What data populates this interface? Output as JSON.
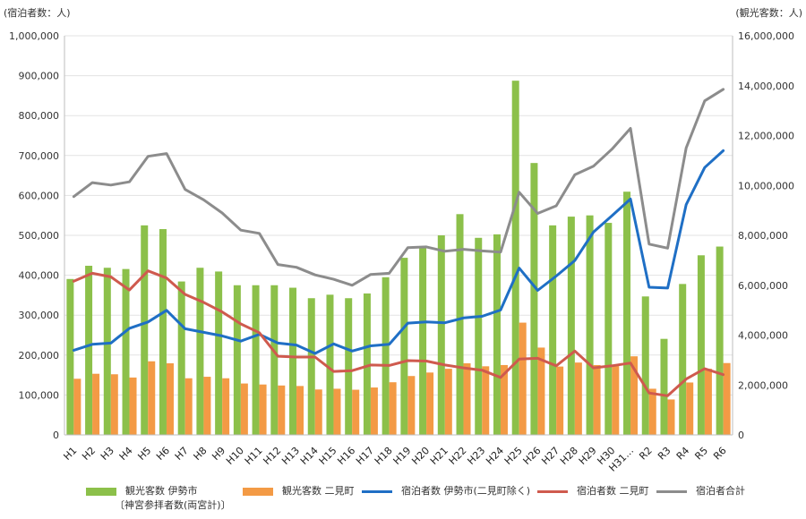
{
  "chart_data": {
    "type": "bar",
    "title": "",
    "left_unit_label": "(宿泊者数：人)",
    "right_unit_label": "(観光客数：人)",
    "categories": [
      "H1",
      "H2",
      "H3",
      "H4",
      "H5",
      "H6",
      "H7",
      "H8",
      "H9",
      "H10",
      "H11",
      "H12",
      "H13",
      "H14",
      "H15",
      "H16",
      "H17",
      "H18",
      "H19",
      "H20",
      "H21",
      "H22",
      "H23",
      "H24",
      "H25",
      "H26",
      "H27",
      "H28",
      "H29",
      "H30",
      "H31…",
      "R2",
      "R3",
      "R4",
      "R5",
      "R6"
    ],
    "left_axis": {
      "min": 0,
      "max": 1000000,
      "ticks": [
        "0",
        "100,000",
        "200,000",
        "300,000",
        "400,000",
        "500,000",
        "600,000",
        "700,000",
        "800,000",
        "900,000",
        "1,000,000"
      ]
    },
    "right_axis": {
      "min": 0,
      "max": 16000000,
      "ticks": [
        "0",
        "2,000,000",
        "4,000,000",
        "6,000,000",
        "8,000,000",
        "10,000,000",
        "12,000,000",
        "14,000,000",
        "16,000,000"
      ]
    },
    "series": [
      {
        "name": "観光客数 伊勢市",
        "name_sub": "〔神宮参拝者数(両宮計)〕",
        "type": "bar",
        "axis": "right",
        "color": "#8cc04a",
        "values": [
          6250000,
          6780000,
          6700000,
          6650000,
          8400000,
          8250000,
          6150000,
          6700000,
          6550000,
          6000000,
          6000000,
          6000000,
          5900000,
          5480000,
          5620000,
          5480000,
          5670000,
          6320000,
          7100000,
          7520000,
          8000000,
          8850000,
          7900000,
          8040000,
          14200000,
          10900000,
          8400000,
          8750000,
          8800000,
          8500000,
          9750000,
          5550000,
          3850000,
          6050000,
          7200000,
          7550000
        ]
      },
      {
        "name": "観光客数 二見町",
        "type": "bar",
        "axis": "right",
        "color": "#f39a45",
        "values": [
          2250000,
          2450000,
          2430000,
          2300000,
          2950000,
          2870000,
          2270000,
          2330000,
          2270000,
          2060000,
          2020000,
          1980000,
          1960000,
          1820000,
          1850000,
          1810000,
          1900000,
          2110000,
          2360000,
          2500000,
          2650000,
          2870000,
          2750000,
          2800000,
          4500000,
          3500000,
          2740000,
          2900000,
          2800000,
          2760000,
          3150000,
          1850000,
          1420000,
          2100000,
          2650000,
          2880000
        ]
      },
      {
        "name": "宿泊者数 伊勢市(二見町除く)",
        "type": "line",
        "axis": "left",
        "color": "#1f6fc5",
        "width": 3,
        "values": [
          212000,
          227000,
          230000,
          267000,
          283000,
          312000,
          266000,
          257000,
          248000,
          235000,
          252000,
          230000,
          225000,
          204000,
          228000,
          210000,
          223000,
          227000,
          280000,
          283000,
          281000,
          293000,
          297000,
          313000,
          418000,
          362000,
          398000,
          437000,
          508000,
          549000,
          591000,
          370000,
          368000,
          577000,
          670000,
          712000
        ]
      },
      {
        "name": "宿泊者数 二見町",
        "type": "line",
        "axis": "left",
        "color": "#cf5a4e",
        "width": 3,
        "values": [
          385000,
          405000,
          396000,
          363000,
          411000,
          393000,
          352000,
          332000,
          308000,
          278000,
          256000,
          197000,
          195000,
          195000,
          159000,
          161000,
          175000,
          174000,
          186000,
          185000,
          175000,
          168000,
          162000,
          144000,
          190000,
          192000,
          173000,
          210000,
          168000,
          173000,
          180000,
          105000,
          98000,
          140000,
          166000,
          151000
        ]
      },
      {
        "name": "宿泊者合計",
        "type": "line",
        "axis": "left",
        "color": "#8c8c8c",
        "width": 3,
        "values": [
          597000,
          632000,
          626000,
          634000,
          698000,
          705000,
          615000,
          589000,
          556000,
          513000,
          505000,
          427000,
          420000,
          401000,
          390000,
          375000,
          402000,
          405000,
          469000,
          471000,
          460000,
          465000,
          461000,
          458000,
          608000,
          555000,
          574000,
          652000,
          673000,
          716000,
          768000,
          478000,
          468000,
          719000,
          837000,
          866000
        ]
      }
    ]
  }
}
